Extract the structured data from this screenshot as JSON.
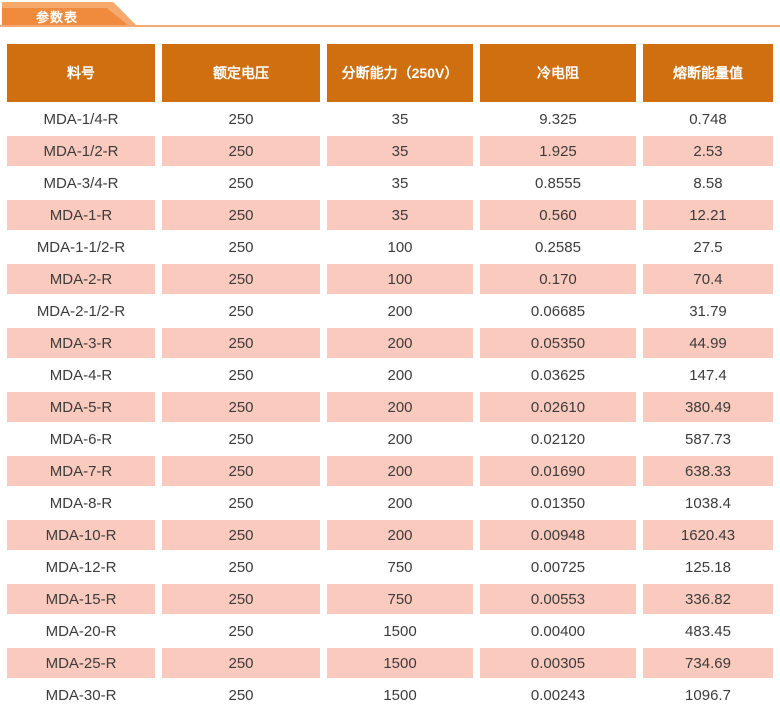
{
  "tab": {
    "label": "参数表"
  },
  "table": {
    "columns": [
      "料号",
      "额定电压",
      "分断能力（250V）",
      "冷电阻",
      "熔断能量值"
    ],
    "rows": [
      [
        "MDA-1/4-R",
        "250",
        "35",
        "9.325",
        "0.748"
      ],
      [
        "MDA-1/2-R",
        "250",
        "35",
        "1.925",
        "2.53"
      ],
      [
        "MDA-3/4-R",
        "250",
        "35",
        "0.8555",
        "8.58"
      ],
      [
        "MDA-1-R",
        "250",
        "35",
        "0.560",
        "12.21"
      ],
      [
        "MDA-1-1/2-R",
        "250",
        "100",
        "0.2585",
        "27.5"
      ],
      [
        "MDA-2-R",
        "250",
        "100",
        "0.170",
        "70.4"
      ],
      [
        "MDA-2-1/2-R",
        "250",
        "200",
        "0.06685",
        "31.79"
      ],
      [
        "MDA-3-R",
        "250",
        "200",
        "0.05350",
        "44.99"
      ],
      [
        "MDA-4-R",
        "250",
        "200",
        "0.03625",
        "147.4"
      ],
      [
        "MDA-5-R",
        "250",
        "200",
        "0.02610",
        "380.49"
      ],
      [
        "MDA-6-R",
        "250",
        "200",
        "0.02120",
        "587.73"
      ],
      [
        "MDA-7-R",
        "250",
        "200",
        "0.01690",
        "638.33"
      ],
      [
        "MDA-8-R",
        "250",
        "200",
        "0.01350",
        "1038.4"
      ],
      [
        "MDA-10-R",
        "250",
        "200",
        "0.00948",
        "1620.43"
      ],
      [
        "MDA-12-R",
        "250",
        "750",
        "0.00725",
        "125.18"
      ],
      [
        "MDA-15-R",
        "250",
        "750",
        "0.00553",
        "336.82"
      ],
      [
        "MDA-20-R",
        "250",
        "1500",
        "0.00400",
        "483.45"
      ],
      [
        "MDA-25-R",
        "250",
        "1500",
        "0.00305",
        "734.69"
      ],
      [
        "MDA-30-R",
        "250",
        "1500",
        "0.00243",
        "1096.7"
      ]
    ]
  },
  "colors": {
    "header_bg": "#CF6F10",
    "stripe_pink": "#FACABE",
    "tab_front_orange": "#F08B3E",
    "tab_back_orange": "#F6A96D",
    "rule_orange": "#F5A873",
    "text": "#3C3C3C"
  }
}
